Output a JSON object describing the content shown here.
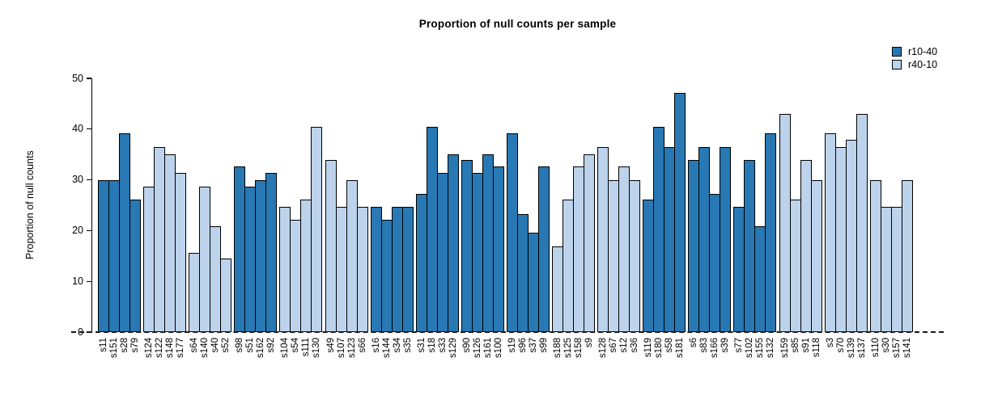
{
  "chart_data": {
    "type": "bar",
    "title": "Proportion of null counts per sample",
    "xlabel": "",
    "ylabel": "Proportion of null counts",
    "ylim": [
      0,
      50
    ],
    "yticks": [
      0,
      10,
      20,
      30,
      40,
      50
    ],
    "grid": false,
    "zero_line_style": "dashed",
    "legend_position": "top-right",
    "bar_border_color": "#000000",
    "group_size": 4,
    "legend": [
      {
        "name": "r10-40",
        "color": "#2878b4"
      },
      {
        "name": "r40-10",
        "color": "#bdd3ec"
      }
    ],
    "bars": [
      {
        "label": "s11",
        "value": 29.9,
        "series": "r10-40"
      },
      {
        "label": "s151",
        "value": 29.9,
        "series": "r10-40"
      },
      {
        "label": "s28",
        "value": 39.1,
        "series": "r10-40"
      },
      {
        "label": "s79",
        "value": 26.1,
        "series": "r10-40"
      },
      {
        "label": "s124",
        "value": 28.7,
        "series": "r40-10"
      },
      {
        "label": "s122",
        "value": 36.5,
        "series": "r40-10"
      },
      {
        "label": "s148",
        "value": 35.1,
        "series": "r40-10"
      },
      {
        "label": "s177",
        "value": 31.3,
        "series": "r40-10"
      },
      {
        "label": "s64",
        "value": 15.6,
        "series": "r40-10"
      },
      {
        "label": "s140",
        "value": 28.7,
        "series": "r40-10"
      },
      {
        "label": "s40",
        "value": 20.9,
        "series": "r40-10"
      },
      {
        "label": "s52",
        "value": 14.5,
        "series": "r40-10"
      },
      {
        "label": "s98",
        "value": 32.6,
        "series": "r10-40"
      },
      {
        "label": "s51",
        "value": 28.7,
        "series": "r10-40"
      },
      {
        "label": "s162",
        "value": 29.9,
        "series": "r10-40"
      },
      {
        "label": "s92",
        "value": 31.3,
        "series": "r10-40"
      },
      {
        "label": "s104",
        "value": 24.7,
        "series": "r40-10"
      },
      {
        "label": "s54",
        "value": 22.1,
        "series": "r40-10"
      },
      {
        "label": "s111",
        "value": 26.1,
        "series": "r40-10"
      },
      {
        "label": "s130",
        "value": 40.4,
        "series": "r40-10"
      },
      {
        "label": "s49",
        "value": 33.9,
        "series": "r40-10"
      },
      {
        "label": "s107",
        "value": 24.7,
        "series": "r40-10"
      },
      {
        "label": "s123",
        "value": 29.9,
        "series": "r40-10"
      },
      {
        "label": "s66",
        "value": 24.7,
        "series": "r40-10"
      },
      {
        "label": "s16",
        "value": 24.7,
        "series": "r10-40"
      },
      {
        "label": "s144",
        "value": 22.1,
        "series": "r10-40"
      },
      {
        "label": "s34",
        "value": 24.7,
        "series": "r10-40"
      },
      {
        "label": "s35",
        "value": 24.7,
        "series": "r10-40"
      },
      {
        "label": "s31",
        "value": 27.3,
        "series": "r10-40"
      },
      {
        "label": "s18",
        "value": 40.4,
        "series": "r10-40"
      },
      {
        "label": "s33",
        "value": 31.3,
        "series": "r10-40"
      },
      {
        "label": "s129",
        "value": 35.1,
        "series": "r10-40"
      },
      {
        "label": "s90",
        "value": 33.9,
        "series": "r10-40"
      },
      {
        "label": "s126",
        "value": 31.3,
        "series": "r10-40"
      },
      {
        "label": "s161",
        "value": 35.1,
        "series": "r10-40"
      },
      {
        "label": "s100",
        "value": 32.6,
        "series": "r10-40"
      },
      {
        "label": "s19",
        "value": 39.1,
        "series": "r10-40"
      },
      {
        "label": "s96",
        "value": 23.3,
        "series": "r10-40"
      },
      {
        "label": "s37",
        "value": 19.6,
        "series": "r10-40"
      },
      {
        "label": "s99",
        "value": 32.6,
        "series": "r10-40"
      },
      {
        "label": "s188",
        "value": 16.9,
        "series": "r40-10"
      },
      {
        "label": "s125",
        "value": 26.1,
        "series": "r40-10"
      },
      {
        "label": "s158",
        "value": 32.6,
        "series": "r40-10"
      },
      {
        "label": "s9",
        "value": 35.1,
        "series": "r40-10"
      },
      {
        "label": "s128",
        "value": 36.5,
        "series": "r40-10"
      },
      {
        "label": "s67",
        "value": 29.9,
        "series": "r40-10"
      },
      {
        "label": "s12",
        "value": 32.6,
        "series": "r40-10"
      },
      {
        "label": "s36",
        "value": 29.9,
        "series": "r40-10"
      },
      {
        "label": "s119",
        "value": 26.1,
        "series": "r10-40"
      },
      {
        "label": "s180",
        "value": 40.4,
        "series": "r10-40"
      },
      {
        "label": "s58",
        "value": 36.5,
        "series": "r10-40"
      },
      {
        "label": "s181",
        "value": 47.1,
        "series": "r10-40"
      },
      {
        "label": "s6",
        "value": 33.9,
        "series": "r10-40"
      },
      {
        "label": "s83",
        "value": 36.5,
        "series": "r10-40"
      },
      {
        "label": "s166",
        "value": 27.3,
        "series": "r10-40"
      },
      {
        "label": "s39",
        "value": 36.5,
        "series": "r10-40"
      },
      {
        "label": "s77",
        "value": 24.7,
        "series": "r10-40"
      },
      {
        "label": "s102",
        "value": 33.9,
        "series": "r10-40"
      },
      {
        "label": "s155",
        "value": 20.9,
        "series": "r10-40"
      },
      {
        "label": "s132",
        "value": 39.1,
        "series": "r10-40"
      },
      {
        "label": "s159",
        "value": 43.0,
        "series": "r40-10"
      },
      {
        "label": "s85",
        "value": 26.1,
        "series": "r40-10"
      },
      {
        "label": "s91",
        "value": 33.9,
        "series": "r40-10"
      },
      {
        "label": "s118",
        "value": 29.9,
        "series": "r40-10"
      },
      {
        "label": "s3",
        "value": 39.1,
        "series": "r40-10"
      },
      {
        "label": "s70",
        "value": 36.5,
        "series": "r40-10"
      },
      {
        "label": "s139",
        "value": 37.9,
        "series": "r40-10"
      },
      {
        "label": "s137",
        "value": 43.0,
        "series": "r40-10"
      },
      {
        "label": "s110",
        "value": 29.9,
        "series": "r40-10"
      },
      {
        "label": "s30",
        "value": 24.7,
        "series": "r40-10"
      },
      {
        "label": "s157",
        "value": 24.7,
        "series": "r40-10"
      },
      {
        "label": "s141",
        "value": 29.9,
        "series": "r40-10"
      }
    ]
  }
}
